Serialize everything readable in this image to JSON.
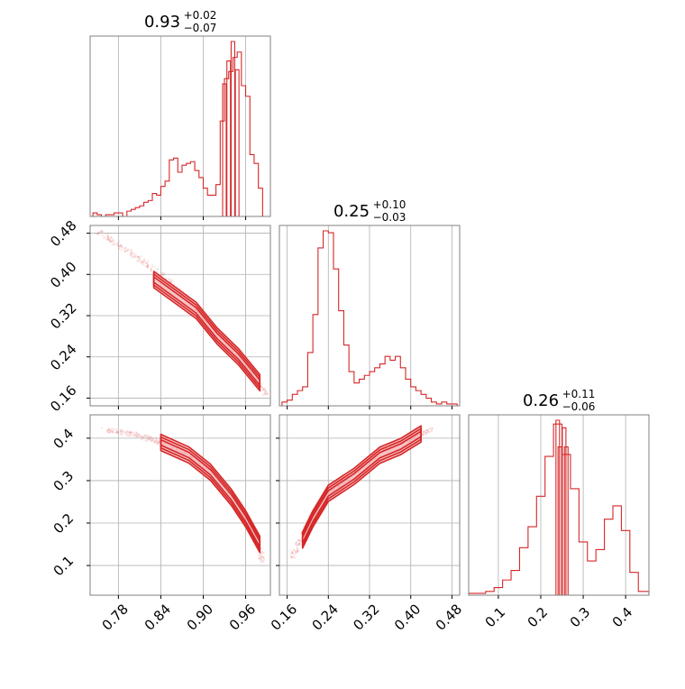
{
  "colors": {
    "series": "#d62728",
    "fill": "#f2a9ad",
    "grid": "#b0b0b0",
    "frame": "#808080"
  },
  "chart_data": {
    "type": "corner",
    "grid": true,
    "panels": [
      {
        "id": "p0",
        "kind": "hist",
        "param_index": 0,
        "title": {
          "value": "0.93",
          "plus": "+0.02",
          "minus": "−0.07"
        },
        "xlim": [
          0.74,
          0.995
        ],
        "bins": [
          [
            0.744,
            0.75,
            0.02
          ],
          [
            0.75,
            0.756,
            0.01
          ],
          [
            0.756,
            0.762,
            0.0
          ],
          [
            0.762,
            0.768,
            0.01
          ],
          [
            0.768,
            0.774,
            0.01
          ],
          [
            0.774,
            0.78,
            0.02
          ],
          [
            0.78,
            0.786,
            0.02
          ],
          [
            0.786,
            0.792,
            0.0
          ],
          [
            0.792,
            0.798,
            0.03
          ],
          [
            0.798,
            0.804,
            0.04
          ],
          [
            0.804,
            0.81,
            0.05
          ],
          [
            0.81,
            0.816,
            0.06
          ],
          [
            0.816,
            0.822,
            0.08
          ],
          [
            0.822,
            0.828,
            0.09
          ],
          [
            0.828,
            0.834,
            0.13
          ],
          [
            0.834,
            0.84,
            0.12
          ],
          [
            0.84,
            0.846,
            0.17
          ],
          [
            0.846,
            0.852,
            0.2
          ],
          [
            0.852,
            0.858,
            0.32
          ],
          [
            0.858,
            0.864,
            0.33
          ],
          [
            0.864,
            0.87,
            0.25
          ],
          [
            0.87,
            0.876,
            0.29
          ],
          [
            0.876,
            0.882,
            0.3
          ],
          [
            0.882,
            0.888,
            0.31
          ],
          [
            0.888,
            0.894,
            0.26
          ],
          [
            0.894,
            0.9,
            0.22
          ],
          [
            0.9,
            0.906,
            0.16
          ],
          [
            0.906,
            0.912,
            0.12
          ],
          [
            0.912,
            0.918,
            0.12
          ],
          [
            0.918,
            0.924,
            0.18
          ],
          [
            0.924,
            0.93,
            0.54
          ],
          [
            0.93,
            0.936,
            0.78
          ],
          [
            0.936,
            0.942,
            0.82
          ],
          [
            0.942,
            0.948,
            0.9
          ],
          [
            0.948,
            0.954,
            0.93
          ],
          [
            0.954,
            0.96,
            0.74
          ],
          [
            0.96,
            0.966,
            0.68
          ],
          [
            0.966,
            0.972,
            0.35
          ],
          [
            0.972,
            0.978,
            0.3
          ],
          [
            0.978,
            0.984,
            0.16
          ]
        ],
        "spikes": [
          [
            0.93,
            0.75
          ],
          [
            0.936,
            0.88
          ],
          [
            0.942,
            0.99
          ],
          [
            0.948,
            0.83
          ]
        ],
        "ticks": [
          0.78,
          0.84,
          0.9,
          0.96
        ]
      },
      {
        "id": "p1",
        "kind": "scatter",
        "xi": 0,
        "yi": 1,
        "xlim": [
          0.74,
          0.995
        ],
        "ylim": [
          0.145,
          0.495
        ],
        "x_ticks": [
          0.78,
          0.84,
          0.9,
          0.96
        ],
        "y_ticks": [
          0.16,
          0.24,
          0.32,
          0.4,
          0.48
        ],
        "y_tick_labels": [
          "0.16",
          "0.24",
          "0.32",
          "0.40",
          "0.48"
        ],
        "ridge": [
          [
            0.75,
            0.485
          ],
          [
            0.8,
            0.44
          ],
          [
            0.84,
            0.4
          ],
          [
            0.88,
            0.35
          ],
          [
            0.92,
            0.29
          ],
          [
            0.96,
            0.22
          ],
          [
            0.99,
            0.165
          ]
        ],
        "contours": [
          [
            0.83,
            0.39
          ],
          [
            0.86,
            0.36
          ],
          [
            0.89,
            0.33
          ],
          [
            0.92,
            0.28
          ],
          [
            0.95,
            0.24
          ],
          [
            0.98,
            0.19
          ]
        ]
      },
      {
        "id": "p2",
        "kind": "hist",
        "param_index": 1,
        "title": {
          "value": "0.25",
          "plus": "+0.10",
          "minus": "−0.03"
        },
        "xlim": [
          0.145,
          0.495
        ],
        "bins": [
          [
            0.15,
            0.16,
            0.02
          ],
          [
            0.16,
            0.17,
            0.03
          ],
          [
            0.17,
            0.18,
            0.06
          ],
          [
            0.18,
            0.19,
            0.08
          ],
          [
            0.19,
            0.2,
            0.1
          ],
          [
            0.2,
            0.21,
            0.28
          ],
          [
            0.21,
            0.22,
            0.48
          ],
          [
            0.22,
            0.23,
            0.83
          ],
          [
            0.23,
            0.24,
            0.92
          ],
          [
            0.24,
            0.25,
            0.91
          ],
          [
            0.25,
            0.26,
            0.72
          ],
          [
            0.26,
            0.27,
            0.5
          ],
          [
            0.27,
            0.28,
            0.32
          ],
          [
            0.28,
            0.29,
            0.18
          ],
          [
            0.29,
            0.3,
            0.12
          ],
          [
            0.3,
            0.31,
            0.14
          ],
          [
            0.31,
            0.32,
            0.16
          ],
          [
            0.32,
            0.33,
            0.18
          ],
          [
            0.33,
            0.34,
            0.2
          ],
          [
            0.34,
            0.35,
            0.22
          ],
          [
            0.35,
            0.36,
            0.26
          ],
          [
            0.36,
            0.37,
            0.24
          ],
          [
            0.37,
            0.38,
            0.26
          ],
          [
            0.38,
            0.39,
            0.2
          ],
          [
            0.39,
            0.4,
            0.14
          ],
          [
            0.4,
            0.41,
            0.1
          ],
          [
            0.41,
            0.42,
            0.08
          ],
          [
            0.42,
            0.43,
            0.06
          ],
          [
            0.43,
            0.44,
            0.04
          ],
          [
            0.44,
            0.45,
            0.02
          ],
          [
            0.45,
            0.46,
            0.01
          ],
          [
            0.46,
            0.47,
            0.02
          ],
          [
            0.47,
            0.48,
            0.01
          ],
          [
            0.48,
            0.49,
            0.01
          ]
        ],
        "spikes": [],
        "ticks": [
          0.16,
          0.24,
          0.32,
          0.4,
          0.48
        ]
      },
      {
        "id": "p3",
        "kind": "scatter",
        "xi": 0,
        "yi": 2,
        "xlim": [
          0.74,
          0.995
        ],
        "ylim": [
          0.03,
          0.455
        ],
        "x_ticks": [
          0.78,
          0.84,
          0.9,
          0.96
        ],
        "y_ticks": [
          0.1,
          0.2,
          0.3,
          0.4
        ],
        "x_tick_labels": [
          "0.78",
          "0.84",
          "0.90",
          "0.96"
        ],
        "y_tick_labels": [
          "0.1",
          "0.2",
          "0.3",
          "0.4"
        ],
        "ridge": [
          [
            0.76,
            0.42
          ],
          [
            0.8,
            0.41
          ],
          [
            0.84,
            0.39
          ],
          [
            0.88,
            0.36
          ],
          [
            0.92,
            0.31
          ],
          [
            0.95,
            0.24
          ],
          [
            0.97,
            0.18
          ],
          [
            0.985,
            0.11
          ]
        ],
        "contours": [
          [
            0.84,
            0.39
          ],
          [
            0.88,
            0.36
          ],
          [
            0.91,
            0.32
          ],
          [
            0.94,
            0.26
          ],
          [
            0.96,
            0.21
          ],
          [
            0.98,
            0.15
          ]
        ]
      },
      {
        "id": "p4",
        "kind": "scatter",
        "xi": 1,
        "yi": 2,
        "xlim": [
          0.145,
          0.495
        ],
        "ylim": [
          0.03,
          0.455
        ],
        "x_ticks": [
          0.16,
          0.24,
          0.32,
          0.4,
          0.48
        ],
        "y_ticks": [
          0.1,
          0.2,
          0.3,
          0.4
        ],
        "x_tick_labels": [
          "0.16",
          "0.24",
          "0.32",
          "0.40",
          "0.48"
        ],
        "ridge": [
          [
            0.17,
            0.12
          ],
          [
            0.2,
            0.2
          ],
          [
            0.24,
            0.27
          ],
          [
            0.28,
            0.31
          ],
          [
            0.32,
            0.35
          ],
          [
            0.36,
            0.38
          ],
          [
            0.4,
            0.4
          ],
          [
            0.44,
            0.42
          ]
        ],
        "contours": [
          [
            0.19,
            0.16
          ],
          [
            0.21,
            0.21
          ],
          [
            0.24,
            0.27
          ],
          [
            0.29,
            0.31
          ],
          [
            0.34,
            0.36
          ],
          [
            0.38,
            0.38
          ],
          [
            0.42,
            0.41
          ]
        ]
      },
      {
        "id": "p5",
        "kind": "hist",
        "param_index": 2,
        "title": {
          "value": "0.26",
          "plus": "+0.11",
          "minus": "−0.06"
        },
        "xlim": [
          0.03,
          0.455
        ],
        "bins": [
          [
            0.03,
            0.05,
            0.01
          ],
          [
            0.05,
            0.07,
            0.01
          ],
          [
            0.07,
            0.09,
            0.02
          ],
          [
            0.09,
            0.11,
            0.04
          ],
          [
            0.11,
            0.13,
            0.08
          ],
          [
            0.13,
            0.15,
            0.13
          ],
          [
            0.15,
            0.17,
            0.25
          ],
          [
            0.17,
            0.19,
            0.36
          ],
          [
            0.19,
            0.21,
            0.52
          ],
          [
            0.21,
            0.23,
            0.73
          ],
          [
            0.23,
            0.25,
            0.9
          ],
          [
            0.25,
            0.27,
            0.74
          ],
          [
            0.27,
            0.29,
            0.56
          ],
          [
            0.29,
            0.31,
            0.28
          ],
          [
            0.31,
            0.33,
            0.18
          ],
          [
            0.33,
            0.35,
            0.24
          ],
          [
            0.35,
            0.37,
            0.4
          ],
          [
            0.37,
            0.39,
            0.47
          ],
          [
            0.39,
            0.41,
            0.34
          ],
          [
            0.41,
            0.43,
            0.12
          ],
          [
            0.43,
            0.455,
            0.02
          ]
        ],
        "spikes": [
          [
            0.24,
            0.92
          ],
          [
            0.245,
            0.78
          ],
          [
            0.255,
            0.88
          ],
          [
            0.26,
            0.78
          ]
        ],
        "ticks": [
          0.1,
          0.2,
          0.3,
          0.4
        ],
        "tick_labels": [
          "0.1",
          "0.2",
          "0.3",
          "0.4"
        ]
      }
    ]
  }
}
